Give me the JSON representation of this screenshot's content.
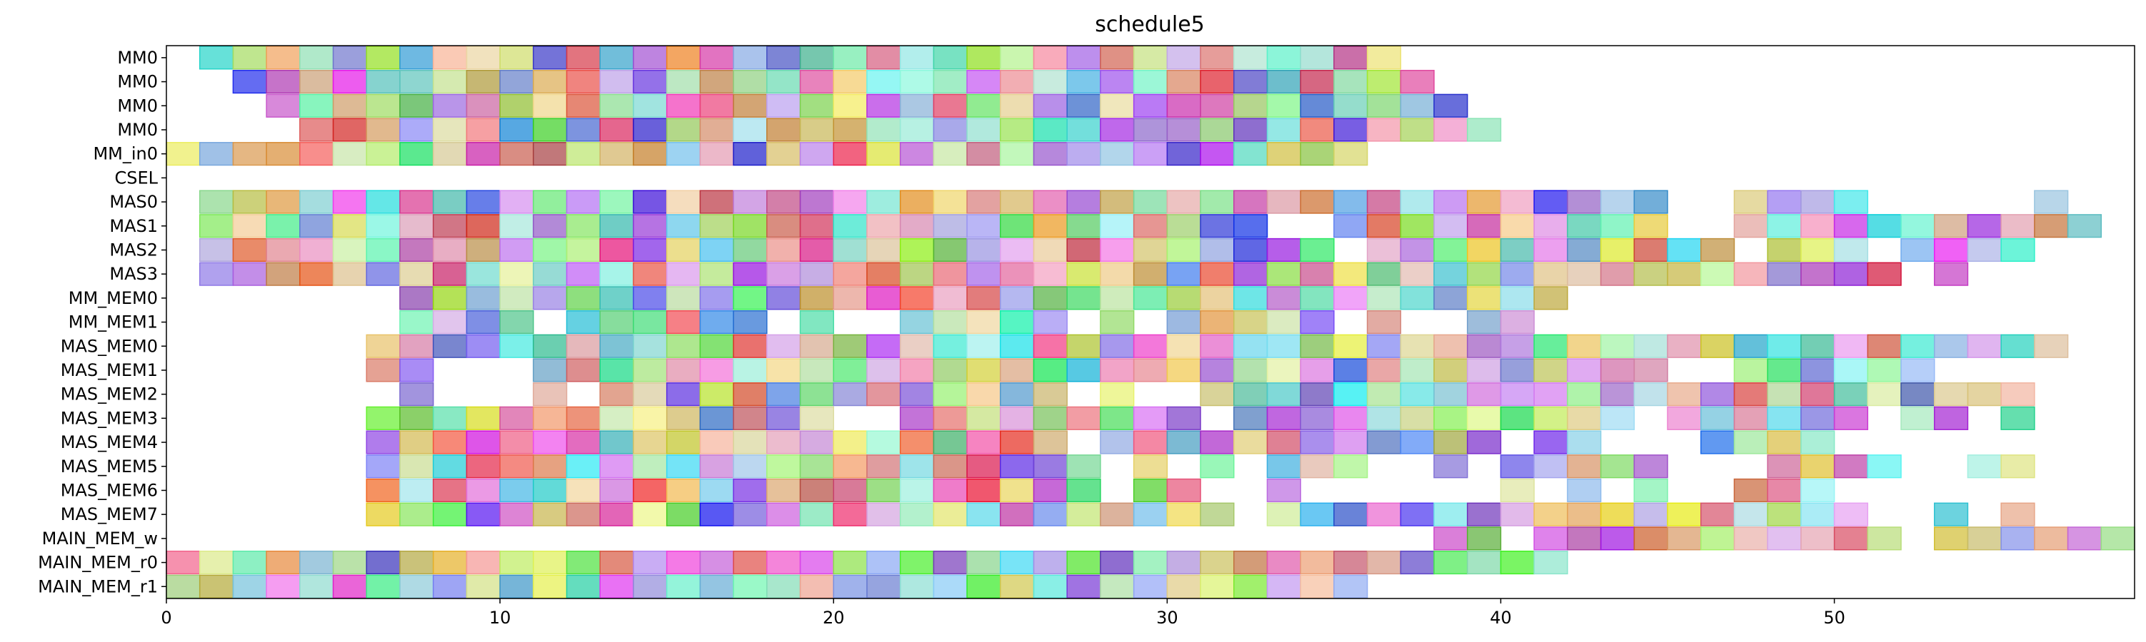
{
  "chart_data": {
    "type": "gantt",
    "title": "schedule5",
    "xlabel": "",
    "ylabel": "",
    "xlim": [
      0,
      59
    ],
    "xticks": [
      0,
      10,
      20,
      30,
      40,
      50
    ],
    "grid": false,
    "categories": [
      "MM0",
      "MM0",
      "MM0",
      "MM0",
      "MM_in0",
      "CSEL",
      "MAS0",
      "MAS1",
      "MAS2",
      "MAS3",
      "MM_MEM0",
      "MM_MEM1",
      "MAS_MEM0",
      "MAS_MEM1",
      "MAS_MEM2",
      "MAS_MEM3",
      "MAS_MEM4",
      "MAS_MEM5",
      "MAS_MEM6",
      "MAS_MEM7",
      "MAIN_MEM_w",
      "MAIN_MEM_r0",
      "MAIN_MEM_r1"
    ],
    "rows": [
      {
        "label": "MM0",
        "spans": [
          [
            1,
            5
          ],
          [
            5,
            9
          ],
          [
            9,
            13
          ],
          [
            13,
            17
          ],
          [
            17,
            21
          ],
          [
            21,
            25
          ],
          [
            25,
            29
          ],
          [
            29,
            33
          ],
          [
            33,
            37
          ]
        ]
      },
      {
        "label": "MM0",
        "spans": [
          [
            2,
            6
          ],
          [
            6,
            10
          ],
          [
            10,
            14
          ],
          [
            14,
            18
          ],
          [
            18,
            22
          ],
          [
            22,
            26
          ],
          [
            26,
            30
          ],
          [
            30,
            34
          ],
          [
            34,
            38
          ]
        ]
      },
      {
        "label": "MM0",
        "spans": [
          [
            3,
            7
          ],
          [
            7,
            11
          ],
          [
            11,
            15
          ],
          [
            15,
            19
          ],
          [
            19,
            23
          ],
          [
            23,
            27
          ],
          [
            27,
            31
          ],
          [
            31,
            35
          ],
          [
            35,
            39
          ]
        ]
      },
      {
        "label": "MM0",
        "spans": [
          [
            4,
            8
          ],
          [
            8,
            12
          ],
          [
            12,
            16
          ],
          [
            16,
            20
          ],
          [
            20,
            24
          ],
          [
            24,
            28
          ],
          [
            28,
            32
          ],
          [
            32,
            36
          ],
          [
            36,
            40
          ]
        ]
      },
      {
        "label": "MM_in0",
        "spans": [
          [
            0,
            36
          ]
        ]
      },
      {
        "label": "CSEL",
        "spans": []
      },
      {
        "label": "MAS0",
        "spans": [
          [
            1,
            19
          ],
          [
            19,
            24
          ],
          [
            24,
            39
          ],
          [
            39,
            40
          ],
          [
            40,
            45
          ],
          [
            47,
            51
          ],
          [
            56,
            57
          ]
        ]
      },
      {
        "label": "MAS1",
        "spans": [
          [
            1,
            19
          ],
          [
            19,
            33
          ],
          [
            35,
            45
          ],
          [
            47,
            54
          ],
          [
            54,
            58
          ]
        ]
      },
      {
        "label": "MAS2",
        "spans": [
          [
            1,
            26
          ],
          [
            26,
            30
          ],
          [
            30,
            32
          ],
          [
            32,
            33
          ],
          [
            33,
            35
          ],
          [
            36,
            43
          ],
          [
            43,
            46
          ],
          [
            46,
            47
          ],
          [
            48,
            51
          ],
          [
            52,
            56
          ]
        ]
      },
      {
        "label": "MAS3",
        "spans": [
          [
            1,
            6
          ],
          [
            6,
            24
          ],
          [
            24,
            27
          ],
          [
            27,
            32
          ],
          [
            32,
            35
          ],
          [
            35,
            42
          ],
          [
            42,
            48
          ],
          [
            48,
            52
          ],
          [
            53,
            54
          ]
        ]
      },
      {
        "label": "MM_MEM0",
        "spans": [
          [
            7,
            36
          ],
          [
            36,
            42
          ]
        ]
      },
      {
        "label": "MM_MEM1",
        "spans": [
          [
            7,
            11
          ],
          [
            12,
            18
          ],
          [
            19,
            20
          ],
          [
            22,
            27
          ],
          [
            28,
            29
          ],
          [
            30,
            35
          ],
          [
            36,
            37
          ],
          [
            39,
            41
          ]
        ]
      },
      {
        "label": "MAS_MEM0",
        "spans": [
          [
            6,
            57
          ]
        ]
      },
      {
        "label": "MAS_MEM1",
        "spans": [
          [
            6,
            8
          ],
          [
            11,
            26
          ],
          [
            26,
            37
          ],
          [
            37,
            45
          ],
          [
            47,
            53
          ]
        ]
      },
      {
        "label": "MAS_MEM2",
        "spans": [
          [
            7,
            8
          ],
          [
            11,
            12
          ],
          [
            13,
            17
          ],
          [
            17,
            24
          ],
          [
            24,
            27
          ],
          [
            28,
            29
          ],
          [
            31,
            56
          ]
        ]
      },
      {
        "label": "MAS_MEM3",
        "spans": [
          [
            6,
            12
          ],
          [
            12,
            17
          ],
          [
            17,
            20
          ],
          [
            22,
            30
          ],
          [
            30,
            31
          ],
          [
            32,
            36
          ],
          [
            36,
            41
          ],
          [
            41,
            44
          ],
          [
            45,
            51
          ],
          [
            52,
            54
          ],
          [
            55,
            56
          ]
        ]
      },
      {
        "label": "MAS_MEM4",
        "spans": [
          [
            6,
            13
          ],
          [
            13,
            30
          ],
          [
            30,
            33
          ],
          [
            33,
            39
          ],
          [
            39,
            40
          ],
          [
            41,
            43
          ],
          [
            46,
            50
          ]
        ]
      },
      {
        "label": "MAS_MEM5",
        "spans": [
          [
            6,
            28
          ],
          [
            29,
            30
          ],
          [
            31,
            32
          ],
          [
            33,
            36
          ],
          [
            38,
            39
          ],
          [
            40,
            44
          ],
          [
            44,
            45
          ],
          [
            48,
            49
          ],
          [
            49,
            51
          ],
          [
            51,
            52
          ],
          [
            54,
            56
          ]
        ]
      },
      {
        "label": "MAS_MEM6",
        "spans": [
          [
            6,
            17
          ],
          [
            17,
            26
          ],
          [
            26,
            28
          ],
          [
            29,
            31
          ],
          [
            33,
            34
          ],
          [
            40,
            41
          ],
          [
            42,
            43
          ],
          [
            44,
            45
          ],
          [
            47,
            50
          ]
        ]
      },
      {
        "label": "MAS_MEM7",
        "spans": [
          [
            6,
            30
          ],
          [
            30,
            31
          ],
          [
            31,
            32
          ],
          [
            33,
            41
          ],
          [
            41,
            45
          ],
          [
            45,
            49
          ],
          [
            49,
            50
          ],
          [
            50,
            51
          ],
          [
            53,
            54
          ],
          [
            55,
            56
          ]
        ]
      },
      {
        "label": "MAIN_MEM_w",
        "spans": [
          [
            38,
            40
          ],
          [
            41,
            45
          ],
          [
            45,
            51
          ],
          [
            51,
            52
          ],
          [
            53,
            59
          ]
        ]
      },
      {
        "label": "MAIN_MEM_r0",
        "spans": [
          [
            0,
            42
          ]
        ]
      },
      {
        "label": "MAIN_MEM_r1",
        "spans": [
          [
            0,
            36
          ]
        ]
      }
    ],
    "gap_rows": {
      "MAS_MEM1": [
        [
          8,
          11
        ]
      ],
      "MAS_MEM4": [
        [
          27,
          28
        ]
      ]
    }
  }
}
